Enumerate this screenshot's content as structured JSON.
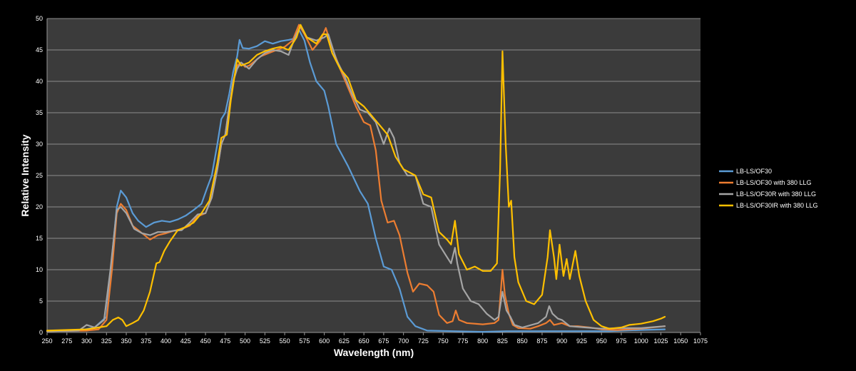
{
  "chart_data": {
    "type": "line",
    "title": "",
    "xlabel": "Wavelength (nm)",
    "ylabel": "Relative Intensity",
    "xlim": [
      250,
      1075
    ],
    "ylim": [
      0,
      50
    ],
    "x_ticks": [
      250,
      275,
      300,
      325,
      350,
      375,
      400,
      425,
      450,
      475,
      500,
      525,
      550,
      575,
      600,
      625,
      650,
      675,
      700,
      725,
      750,
      775,
      800,
      825,
      850,
      875,
      900,
      925,
      950,
      975,
      1000,
      1025,
      1050,
      1075
    ],
    "y_ticks": [
      0,
      5,
      10,
      15,
      20,
      25,
      30,
      35,
      40,
      45,
      50
    ],
    "grid": "horizontal",
    "legend_position": "right",
    "background": "#3b3b3b",
    "series": [
      {
        "name": "LB-LS/OF30",
        "color": "#5b9bd5",
        "points": [
          [
            250,
            0.2
          ],
          [
            290,
            0.3
          ],
          [
            310,
            0.8
          ],
          [
            325,
            2.5
          ],
          [
            332,
            12
          ],
          [
            338,
            20
          ],
          [
            343,
            22.6
          ],
          [
            350,
            21.5
          ],
          [
            358,
            19
          ],
          [
            365,
            17.8
          ],
          [
            375,
            16.8
          ],
          [
            385,
            17.5
          ],
          [
            395,
            17.8
          ],
          [
            405,
            17.6
          ],
          [
            415,
            18
          ],
          [
            425,
            18.6
          ],
          [
            435,
            19.5
          ],
          [
            445,
            20.5
          ],
          [
            452,
            23
          ],
          [
            458,
            25
          ],
          [
            465,
            30
          ],
          [
            470,
            34
          ],
          [
            475,
            35
          ],
          [
            480,
            38
          ],
          [
            485,
            41.5
          ],
          [
            490,
            44
          ],
          [
            493,
            46.6
          ],
          [
            497,
            45.3
          ],
          [
            505,
            45.2
          ],
          [
            515,
            45.6
          ],
          [
            525,
            46.4
          ],
          [
            535,
            46
          ],
          [
            545,
            46.4
          ],
          [
            555,
            46.6
          ],
          [
            562,
            46.8
          ],
          [
            568,
            48.2
          ],
          [
            575,
            46.5
          ],
          [
            582,
            43
          ],
          [
            590,
            40
          ],
          [
            600,
            38.5
          ],
          [
            605,
            36
          ],
          [
            615,
            30
          ],
          [
            630,
            26.5
          ],
          [
            645,
            22.5
          ],
          [
            655,
            20.5
          ],
          [
            665,
            15
          ],
          [
            675,
            10.5
          ],
          [
            685,
            10
          ],
          [
            695,
            7
          ],
          [
            705,
            2.5
          ],
          [
            715,
            1
          ],
          [
            730,
            0.3
          ],
          [
            800,
            0.1
          ],
          [
            830,
            0.2
          ],
          [
            900,
            0.2
          ],
          [
            960,
            0.2
          ],
          [
            1000,
            0.4
          ],
          [
            1030,
            0.5
          ]
        ]
      },
      {
        "name": "LB-LS/OF30 with 380 LLG",
        "color": "#ed7d31",
        "points": [
          [
            250,
            0.2
          ],
          [
            300,
            0.3
          ],
          [
            315,
            0.5
          ],
          [
            325,
            2
          ],
          [
            332,
            10
          ],
          [
            338,
            19
          ],
          [
            343,
            20.5
          ],
          [
            350,
            19.5
          ],
          [
            358,
            17
          ],
          [
            368,
            16
          ],
          [
            380,
            14.8
          ],
          [
            390,
            15.5
          ],
          [
            400,
            15.8
          ],
          [
            410,
            16.2
          ],
          [
            420,
            16.5
          ],
          [
            430,
            17
          ],
          [
            440,
            18.5
          ],
          [
            450,
            19
          ],
          [
            458,
            21.5
          ],
          [
            465,
            26
          ],
          [
            470,
            30
          ],
          [
            475,
            31.5
          ],
          [
            480,
            36
          ],
          [
            485,
            40
          ],
          [
            490,
            42.5
          ],
          [
            495,
            43
          ],
          [
            500,
            42.3
          ],
          [
            505,
            42.5
          ],
          [
            510,
            43
          ],
          [
            520,
            44
          ],
          [
            530,
            44.5
          ],
          [
            540,
            45
          ],
          [
            550,
            45.5
          ],
          [
            560,
            46.5
          ],
          [
            568,
            49
          ],
          [
            575,
            47.5
          ],
          [
            585,
            45
          ],
          [
            595,
            46.5
          ],
          [
            602,
            48.5
          ],
          [
            608,
            46
          ],
          [
            620,
            42
          ],
          [
            630,
            39
          ],
          [
            640,
            36
          ],
          [
            650,
            33.5
          ],
          [
            658,
            33
          ],
          [
            665,
            29
          ],
          [
            672,
            21
          ],
          [
            680,
            17.5
          ],
          [
            688,
            17.8
          ],
          [
            695,
            15.5
          ],
          [
            705,
            9.5
          ],
          [
            712,
            6.5
          ],
          [
            720,
            7.8
          ],
          [
            730,
            7.5
          ],
          [
            738,
            6.5
          ],
          [
            745,
            2.8
          ],
          [
            755,
            1.5
          ],
          [
            762,
            1.8
          ],
          [
            766,
            3.5
          ],
          [
            770,
            2
          ],
          [
            780,
            1.5
          ],
          [
            800,
            1.3
          ],
          [
            815,
            1.5
          ],
          [
            820,
            2
          ],
          [
            825,
            10
          ],
          [
            828,
            6
          ],
          [
            833,
            3
          ],
          [
            838,
            1.2
          ],
          [
            845,
            0.7
          ],
          [
            860,
            0.6
          ],
          [
            870,
            1
          ],
          [
            880,
            1.5
          ],
          [
            885,
            2
          ],
          [
            890,
            1.2
          ],
          [
            900,
            1.5
          ],
          [
            910,
            1
          ],
          [
            920,
            1
          ],
          [
            935,
            0.8
          ],
          [
            950,
            0.5
          ],
          [
            970,
            0.4
          ],
          [
            1000,
            0.6
          ],
          [
            1030,
            1
          ]
        ]
      },
      {
        "name": "LB-LS/OF30R with 380 LLG",
        "color": "#a5a5a5",
        "points": [
          [
            250,
            0.2
          ],
          [
            290,
            0.3
          ],
          [
            300,
            1.2
          ],
          [
            310,
            0.8
          ],
          [
            322,
            2
          ],
          [
            330,
            10
          ],
          [
            338,
            19.5
          ],
          [
            343,
            20
          ],
          [
            350,
            19
          ],
          [
            360,
            16.5
          ],
          [
            370,
            15.8
          ],
          [
            380,
            15.5
          ],
          [
            390,
            16
          ],
          [
            400,
            16
          ],
          [
            410,
            16.2
          ],
          [
            420,
            16.3
          ],
          [
            430,
            17.5
          ],
          [
            440,
            18.8
          ],
          [
            450,
            19
          ],
          [
            458,
            21.5
          ],
          [
            465,
            26
          ],
          [
            470,
            30
          ],
          [
            475,
            31.5
          ],
          [
            480,
            36
          ],
          [
            485,
            40
          ],
          [
            490,
            42
          ],
          [
            495,
            43
          ],
          [
            500,
            42.5
          ],
          [
            505,
            42
          ],
          [
            515,
            43.5
          ],
          [
            525,
            44.5
          ],
          [
            535,
            45
          ],
          [
            545,
            44.8
          ],
          [
            555,
            44.2
          ],
          [
            563,
            47
          ],
          [
            570,
            48.8
          ],
          [
            578,
            47
          ],
          [
            590,
            46.5
          ],
          [
            600,
            47
          ],
          [
            605,
            47.5
          ],
          [
            615,
            43.5
          ],
          [
            625,
            41
          ],
          [
            635,
            38
          ],
          [
            645,
            35.5
          ],
          [
            655,
            35
          ],
          [
            665,
            33.5
          ],
          [
            675,
            30
          ],
          [
            682,
            32.5
          ],
          [
            688,
            31
          ],
          [
            695,
            27
          ],
          [
            705,
            25
          ],
          [
            715,
            25
          ],
          [
            725,
            20.5
          ],
          [
            735,
            20
          ],
          [
            745,
            14
          ],
          [
            755,
            12
          ],
          [
            760,
            11
          ],
          [
            765,
            13.5
          ],
          [
            768,
            11
          ],
          [
            775,
            7
          ],
          [
            785,
            5
          ],
          [
            795,
            4.5
          ],
          [
            805,
            3
          ],
          [
            815,
            2
          ],
          [
            820,
            2.5
          ],
          [
            825,
            6.5
          ],
          [
            830,
            3.5
          ],
          [
            835,
            2.5
          ],
          [
            840,
            1.2
          ],
          [
            850,
            0.8
          ],
          [
            870,
            1.5
          ],
          [
            880,
            2.5
          ],
          [
            884,
            4.2
          ],
          [
            888,
            3
          ],
          [
            895,
            2.2
          ],
          [
            900,
            2
          ],
          [
            910,
            1
          ],
          [
            930,
            0.8
          ],
          [
            950,
            0.6
          ],
          [
            975,
            0.7
          ],
          [
            1000,
            0.7
          ],
          [
            1030,
            1
          ]
        ]
      },
      {
        "name": "LB-LS/OF30IR with 380 LLG",
        "color": "#ffc000",
        "points": [
          [
            250,
            0.3
          ],
          [
            300,
            0.5
          ],
          [
            315,
            0.8
          ],
          [
            325,
            1
          ],
          [
            333,
            2
          ],
          [
            340,
            2.4
          ],
          [
            345,
            2
          ],
          [
            350,
            1
          ],
          [
            358,
            1.5
          ],
          [
            365,
            2
          ],
          [
            372,
            3.5
          ],
          [
            380,
            6.5
          ],
          [
            388,
            11
          ],
          [
            392,
            11.2
          ],
          [
            398,
            13
          ],
          [
            405,
            14.5
          ],
          [
            415,
            16.3
          ],
          [
            425,
            16.8
          ],
          [
            435,
            17.5
          ],
          [
            445,
            19
          ],
          [
            455,
            21
          ],
          [
            465,
            27
          ],
          [
            470,
            31
          ],
          [
            477,
            31.5
          ],
          [
            482,
            37
          ],
          [
            490,
            43.5
          ],
          [
            495,
            42.5
          ],
          [
            505,
            43
          ],
          [
            515,
            44.2
          ],
          [
            525,
            44.8
          ],
          [
            535,
            45.2
          ],
          [
            545,
            45.5
          ],
          [
            555,
            45
          ],
          [
            565,
            47
          ],
          [
            570,
            49
          ],
          [
            578,
            47
          ],
          [
            590,
            46
          ],
          [
            598,
            47.5
          ],
          [
            603,
            47.5
          ],
          [
            610,
            44.5
          ],
          [
            620,
            42
          ],
          [
            630,
            40.5
          ],
          [
            640,
            37
          ],
          [
            650,
            36
          ],
          [
            660,
            34.5
          ],
          [
            670,
            33
          ],
          [
            680,
            31.5
          ],
          [
            690,
            28
          ],
          [
            700,
            26
          ],
          [
            715,
            25
          ],
          [
            725,
            22
          ],
          [
            735,
            21.5
          ],
          [
            745,
            16
          ],
          [
            755,
            14.8
          ],
          [
            760,
            14
          ],
          [
            765,
            17.8
          ],
          [
            770,
            12.5
          ],
          [
            780,
            10
          ],
          [
            790,
            10.5
          ],
          [
            800,
            9.8
          ],
          [
            810,
            9.8
          ],
          [
            818,
            11
          ],
          [
            822,
            26
          ],
          [
            825,
            44.8
          ],
          [
            829,
            30
          ],
          [
            833,
            20
          ],
          [
            836,
            21
          ],
          [
            840,
            12
          ],
          [
            845,
            8
          ],
          [
            855,
            5
          ],
          [
            865,
            4.5
          ],
          [
            875,
            6
          ],
          [
            882,
            12
          ],
          [
            885,
            16.3
          ],
          [
            890,
            12
          ],
          [
            893,
            8.5
          ],
          [
            897,
            14
          ],
          [
            902,
            9
          ],
          [
            906,
            11.7
          ],
          [
            910,
            8.5
          ],
          [
            917,
            13
          ],
          [
            922,
            9
          ],
          [
            930,
            5
          ],
          [
            940,
            2
          ],
          [
            950,
            1
          ],
          [
            960,
            0.6
          ],
          [
            975,
            0.8
          ],
          [
            985,
            1.2
          ],
          [
            1000,
            1.4
          ],
          [
            1015,
            1.8
          ],
          [
            1025,
            2.2
          ],
          [
            1030,
            2.5
          ]
        ]
      }
    ]
  }
}
